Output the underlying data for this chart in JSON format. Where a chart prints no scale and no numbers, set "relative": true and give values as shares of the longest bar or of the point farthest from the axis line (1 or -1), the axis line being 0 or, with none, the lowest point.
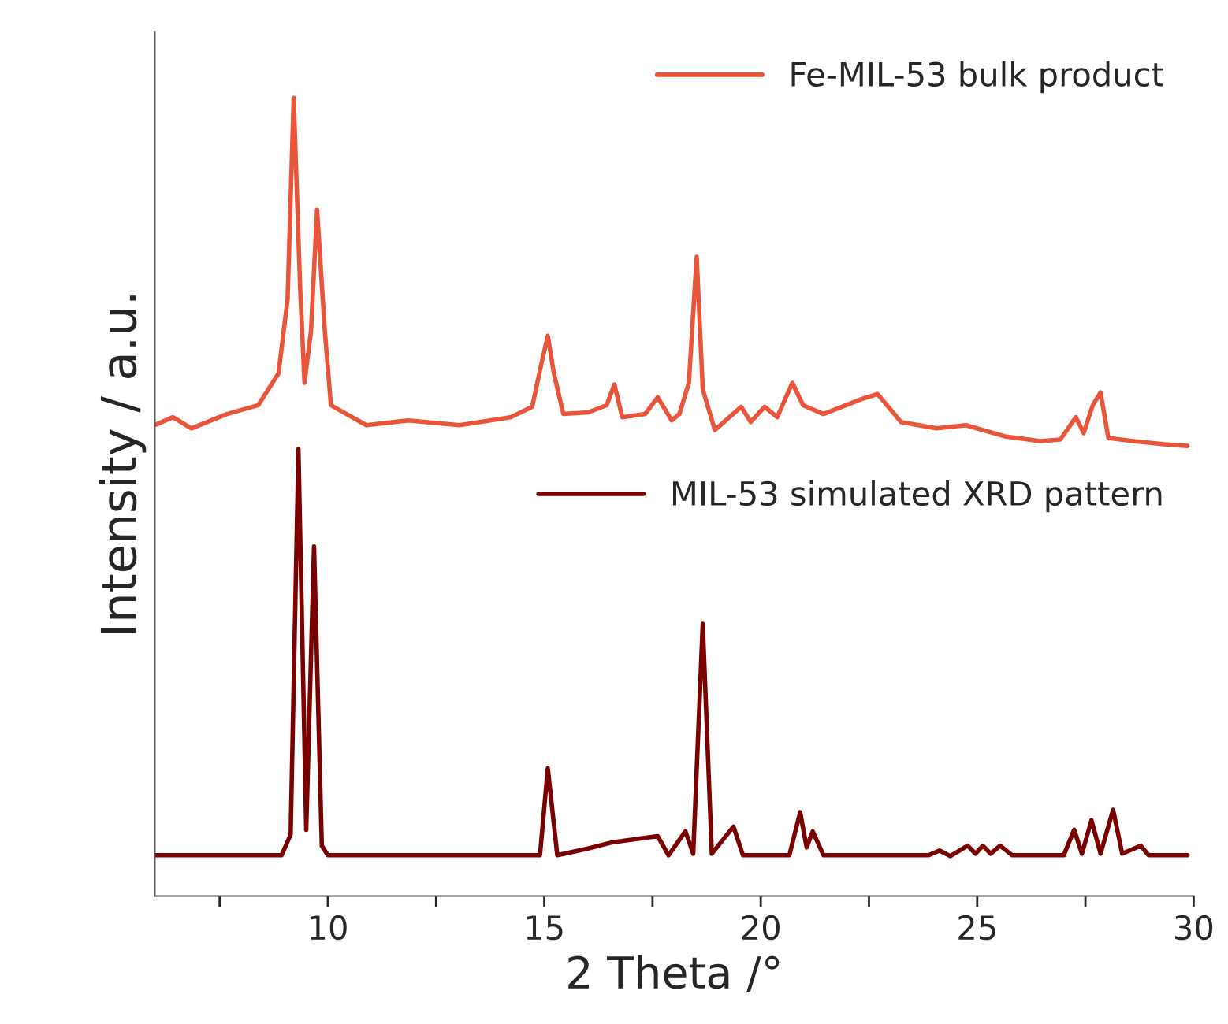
{
  "chart_data": {
    "type": "line",
    "relative": true,
    "xlabel": "2 Theta /°",
    "ylabel": "Intensity / a.u.",
    "xlim": [
      6,
      30
    ],
    "xticks": [
      {
        "value": 7.5,
        "label": null
      },
      10,
      {
        "value": 12.5,
        "label": null
      },
      15,
      {
        "value": 17.5,
        "label": null
      },
      20,
      {
        "value": 22.5,
        "label": null
      },
      25,
      {
        "value": 27.5,
        "label": null
      },
      30
    ],
    "legend": "top right",
    "grid": false,
    "series": [
      {
        "name": "Fe-MIL-53 bulk product",
        "color": "#e8553a",
        "x": [
          6.0,
          6.42,
          6.85,
          7.67,
          8.39,
          8.86,
          9.07,
          9.21,
          9.36,
          9.46,
          9.61,
          9.75,
          9.93,
          10.07,
          10.43,
          10.89,
          11.86,
          13.04,
          14.22,
          14.72,
          14.94,
          15.08,
          15.22,
          15.44,
          16.01,
          16.44,
          16.62,
          16.8,
          17.33,
          17.62,
          17.94,
          18.12,
          18.34,
          18.52,
          18.66,
          18.94,
          19.55,
          19.77,
          20.09,
          20.38,
          20.73,
          20.98,
          21.45,
          22.34,
          22.7,
          23.24,
          24.06,
          24.74,
          25.64,
          26.46,
          26.92,
          27.28,
          27.46,
          27.67,
          27.85,
          28.03,
          28.6,
          29.32,
          29.86
        ],
        "values": [
          0.59,
          0.6,
          0.586,
          0.604,
          0.615,
          0.655,
          0.748,
          1.0,
          0.761,
          0.643,
          0.708,
          0.86,
          0.708,
          0.615,
          0.604,
          0.59,
          0.596,
          0.59,
          0.6,
          0.613,
          0.669,
          0.702,
          0.655,
          0.604,
          0.606,
          0.615,
          0.641,
          0.6,
          0.604,
          0.625,
          0.596,
          0.604,
          0.643,
          0.801,
          0.635,
          0.584,
          0.613,
          0.594,
          0.613,
          0.6,
          0.643,
          0.615,
          0.604,
          0.623,
          0.629,
          0.594,
          0.586,
          0.59,
          0.576,
          0.57,
          0.572,
          0.6,
          0.58,
          0.615,
          0.631,
          0.574,
          0.57,
          0.566,
          0.564
        ]
      },
      {
        "name": "MIL-53 simulated XRD pattern",
        "color": "#7b0000",
        "x": [
          6.0,
          8.93,
          9.14,
          9.32,
          9.5,
          9.68,
          9.86,
          10.0,
          14.9,
          15.08,
          15.3,
          15.97,
          16.55,
          17.62,
          17.87,
          18.26,
          18.44,
          18.66,
          18.87,
          19.37,
          19.59,
          20.66,
          20.91,
          21.06,
          21.2,
          21.45,
          23.88,
          24.13,
          24.38,
          24.78,
          24.96,
          25.13,
          25.31,
          25.53,
          25.81,
          27.0,
          27.24,
          27.42,
          27.64,
          27.85,
          28.14,
          28.35,
          28.78,
          28.96,
          29.86
        ],
        "values": [
          0.051,
          0.051,
          0.077,
          0.56,
          0.083,
          0.438,
          0.063,
          0.051,
          0.051,
          0.16,
          0.051,
          0.059,
          0.067,
          0.075,
          0.051,
          0.081,
          0.053,
          0.341,
          0.053,
          0.087,
          0.051,
          0.051,
          0.105,
          0.061,
          0.081,
          0.051,
          0.051,
          0.057,
          0.05,
          0.063,
          0.053,
          0.063,
          0.053,
          0.063,
          0.051,
          0.051,
          0.083,
          0.053,
          0.095,
          0.053,
          0.108,
          0.053,
          0.063,
          0.051,
          0.051
        ]
      }
    ]
  }
}
